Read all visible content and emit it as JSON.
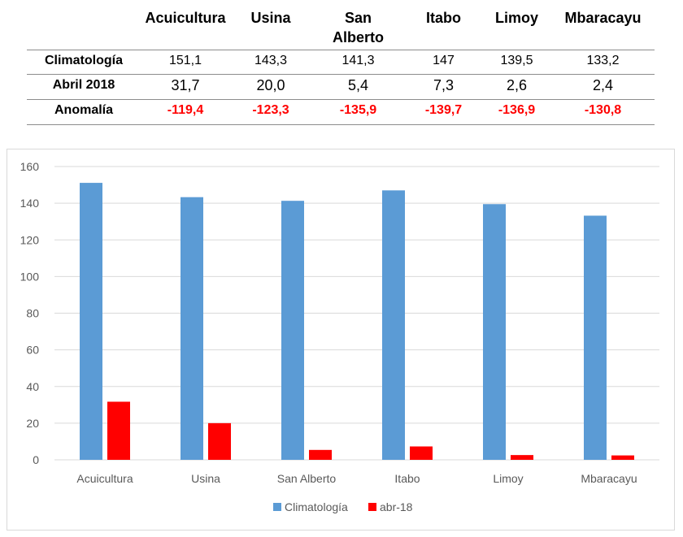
{
  "table": {
    "headers": [
      {
        "line1": "Acuicultura",
        "line2": ""
      },
      {
        "line1": "Usina",
        "line2": ""
      },
      {
        "line1": "San",
        "line2": "Alberto"
      },
      {
        "line1": "Itabo",
        "line2": ""
      },
      {
        "line1": "Limoy",
        "line2": ""
      },
      {
        "line1": "Mbaracayu",
        "line2": ""
      }
    ],
    "rows": [
      {
        "label": "Climatología",
        "values": [
          "151,1",
          "143,3",
          "141,3",
          "147",
          "139,5",
          "133,2"
        ]
      },
      {
        "label": "Abril 2018",
        "values": [
          "31,7",
          "20,0",
          "5,4",
          "7,3",
          "2,6",
          "2,4"
        ]
      },
      {
        "label": "Anomalía",
        "values": [
          "-119,4",
          "-123,3",
          "-135,9",
          "-139,7",
          "-136,9",
          "-130,8"
        ]
      }
    ]
  },
  "chart_data": {
    "type": "bar",
    "categories": [
      "Acuicultura",
      "Usina",
      "San Alberto",
      "Itabo",
      "Limoy",
      "Mbaracayu"
    ],
    "series": [
      {
        "name": "Climatología",
        "color": "#5b9bd5",
        "values": [
          151.1,
          143.3,
          141.3,
          147,
          139.5,
          133.2
        ]
      },
      {
        "name": "abr-18",
        "color": "#ff0000",
        "values": [
          31.7,
          20.0,
          5.4,
          7.3,
          2.6,
          2.4
        ]
      }
    ],
    "ylim": [
      0,
      160
    ],
    "yticks": [
      0,
      20,
      40,
      60,
      80,
      100,
      120,
      140,
      160
    ],
    "grid": true,
    "legend": "bottom",
    "title": "",
    "xlabel": "",
    "ylabel": ""
  }
}
